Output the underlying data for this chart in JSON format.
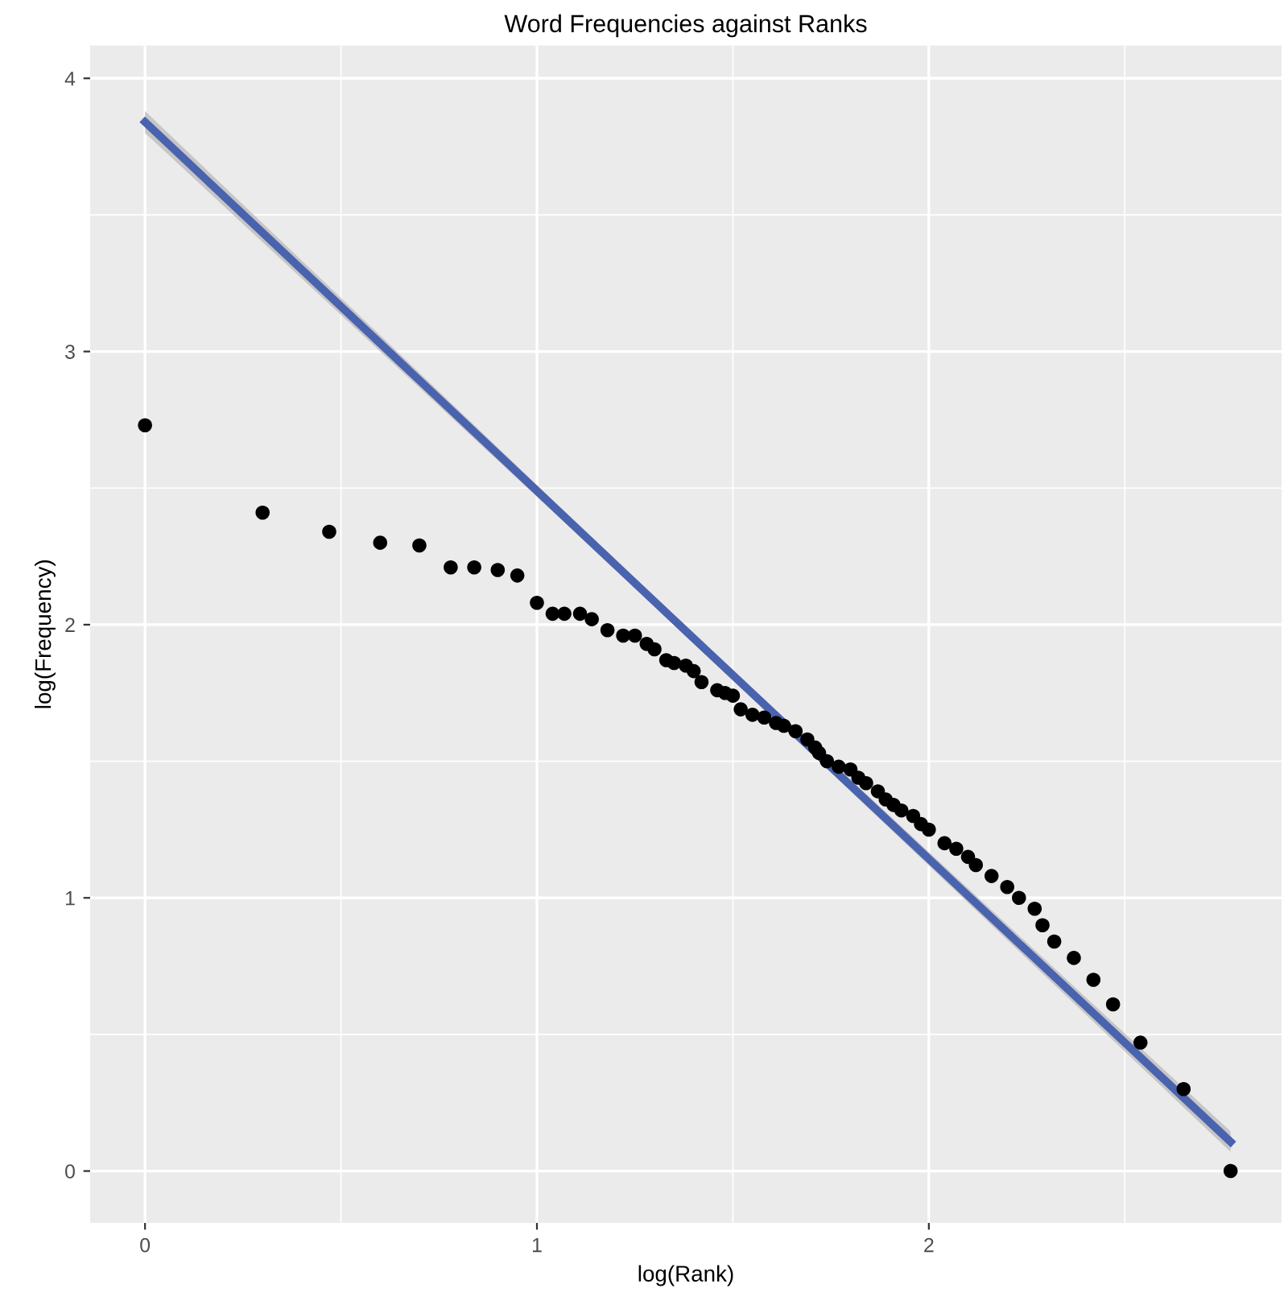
{
  "chart_data": {
    "type": "scatter",
    "title": "Word Frequencies against Ranks",
    "xlabel": "log(Rank)",
    "ylabel": "log(Frequency)",
    "xlim": [
      -0.14,
      2.9
    ],
    "ylim": [
      -0.19,
      4.12
    ],
    "xticks": [
      0,
      1,
      2
    ],
    "yticks": [
      0,
      1,
      2,
      3,
      4
    ],
    "grid": true,
    "series": [
      {
        "marker": "circle",
        "color": "#000000",
        "x": [
          0,
          0.3,
          0.47,
          0.6,
          0.7,
          0.78,
          0.84,
          0.9,
          0.95,
          1.0,
          1.04,
          1.07,
          1.11,
          1.14,
          1.18,
          1.22,
          1.25,
          1.28,
          1.3,
          1.33,
          1.35,
          1.38,
          1.4,
          1.42,
          1.46,
          1.48,
          1.5,
          1.52,
          1.55,
          1.58,
          1.61,
          1.63,
          1.66,
          1.69,
          1.71,
          1.72,
          1.74,
          1.77,
          1.8,
          1.82,
          1.84,
          1.87,
          1.89,
          1.91,
          1.93,
          1.96,
          1.98,
          2.0,
          2.04,
          2.07,
          2.1,
          2.12,
          2.16,
          2.2,
          2.23,
          2.27,
          2.29,
          2.32,
          2.37,
          2.42,
          2.47,
          2.54,
          2.65,
          2.77
        ],
        "values": [
          2.73,
          2.41,
          2.34,
          2.3,
          2.29,
          2.21,
          2.21,
          2.2,
          2.18,
          2.08,
          2.04,
          2.04,
          2.04,
          2.02,
          1.98,
          1.96,
          1.96,
          1.93,
          1.91,
          1.87,
          1.86,
          1.85,
          1.83,
          1.79,
          1.76,
          1.75,
          1.74,
          1.69,
          1.67,
          1.66,
          1.64,
          1.63,
          1.61,
          1.58,
          1.55,
          1.53,
          1.5,
          1.48,
          1.47,
          1.44,
          1.42,
          1.39,
          1.36,
          1.34,
          1.32,
          1.3,
          1.27,
          1.25,
          1.2,
          1.18,
          1.15,
          1.12,
          1.08,
          1.04,
          1.0,
          0.96,
          0.9,
          0.84,
          0.78,
          0.7,
          0.61,
          0.47,
          0.3,
          0.0
        ]
      },
      {
        "type": "line",
        "color": "#4a63ae",
        "x": [
          0,
          1.385,
          2.77
        ],
        "values": [
          3.84,
          1.97,
          0.107
        ],
        "lower": [
          3.8,
          1.955,
          0.07
        ],
        "upper": [
          3.88,
          1.985,
          0.145
        ]
      }
    ]
  }
}
